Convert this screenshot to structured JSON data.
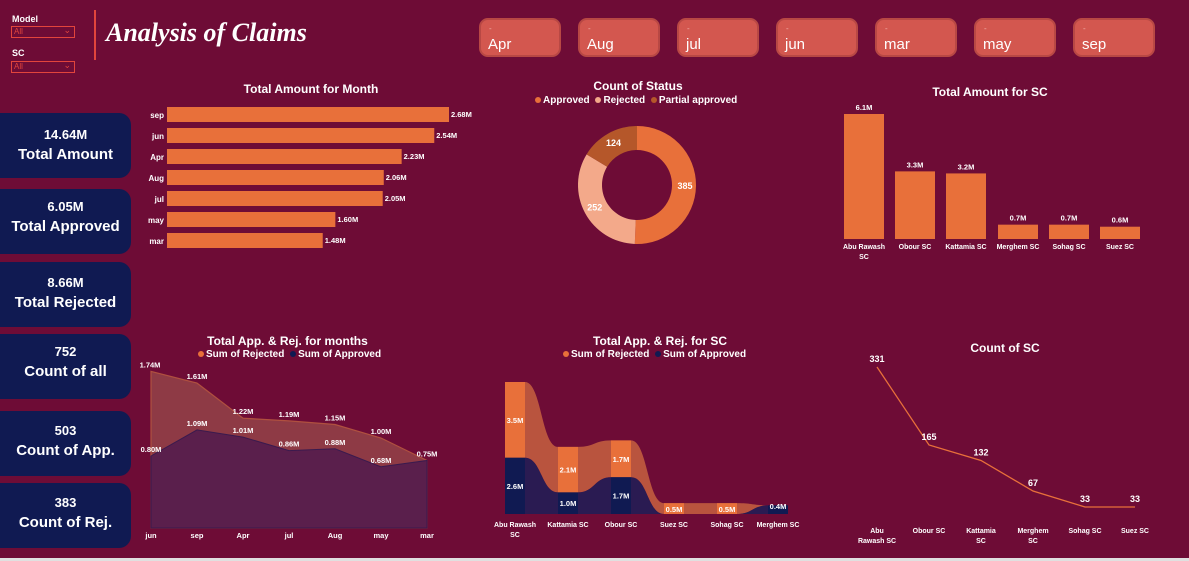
{
  "header": {
    "title": "Analysis of Claims",
    "filters": [
      {
        "label": "Model",
        "value": "All"
      },
      {
        "label": "SC",
        "value": "All"
      }
    ],
    "month_buttons": [
      "Apr",
      "Aug",
      "jul",
      "jun",
      "mar",
      "may",
      "sep"
    ]
  },
  "kpis": [
    {
      "value": "14.64M",
      "label": "Total Amount"
    },
    {
      "value": "6.05M",
      "label": "Total Approved"
    },
    {
      "value": "8.66M",
      "label": "Total Rejected"
    },
    {
      "value": "752",
      "label": "Count of all"
    },
    {
      "value": "503",
      "label": "Count of App."
    },
    {
      "value": "383",
      "label": "Count of Rej."
    }
  ],
  "colors": {
    "background": "#6e0c36",
    "orange": "#e8703a",
    "navy": "#101a52",
    "light_peach": "#f3a98a",
    "brown": "#b5572a"
  },
  "chart_data": [
    {
      "id": "amount_month",
      "type": "bar",
      "orientation": "horizontal",
      "title": "Total Amount for Month",
      "categories": [
        "sep",
        "jun",
        "Apr",
        "Aug",
        "jul",
        "may",
        "mar"
      ],
      "values": [
        2.68,
        2.54,
        2.23,
        2.06,
        2.05,
        1.6,
        1.48
      ],
      "labels": [
        "2.68M",
        "2.54M",
        "2.23M",
        "2.06M",
        "2.05M",
        "1.60M",
        "1.48M"
      ],
      "unit": "M",
      "xlim": [
        0,
        2.68
      ]
    },
    {
      "id": "status",
      "type": "pie",
      "donut": true,
      "title": "Count of Status",
      "legend": [
        "Approved",
        "Rejected",
        "Partial approved"
      ],
      "values": [
        385,
        252,
        124
      ],
      "labels": [
        "385",
        "252",
        "124"
      ],
      "legend_position": "top"
    },
    {
      "id": "amount_sc",
      "type": "bar",
      "title": "Total Amount for SC",
      "categories": [
        "Abu Rawash SC",
        "Obour SC",
        "Kattamia SC",
        "Merghem SC",
        "Sohag SC",
        "Suez SC"
      ],
      "values": [
        6.1,
        3.3,
        3.2,
        0.7,
        0.7,
        0.6
      ],
      "labels": [
        "6.1M",
        "3.3M",
        "3.2M",
        "0.7M",
        "0.7M",
        "0.6M"
      ],
      "ylim": [
        0,
        6.1
      ]
    },
    {
      "id": "app_rej_months",
      "type": "area",
      "title": "Total App. & Rej. for months",
      "legend": [
        "Sum of Rejected",
        "Sum of Approved"
      ],
      "legend_position": "top",
      "categories": [
        "jun",
        "sep",
        "Apr",
        "jul",
        "Aug",
        "may",
        "mar"
      ],
      "series": [
        {
          "name": "Sum of Rejected",
          "values": [
            1.74,
            1.61,
            1.22,
            1.19,
            1.15,
            1.0,
            0.75
          ],
          "labels": [
            "1.74M",
            "1.61M",
            "1.22M",
            "1.19M",
            "1.15M",
            "1.00M",
            "0.75M"
          ]
        },
        {
          "name": "Sum of Approved",
          "values": [
            0.8,
            1.09,
            1.01,
            0.86,
            0.88,
            0.68,
            0.75
          ],
          "labels": [
            "0.80M",
            "1.09M",
            "1.01M",
            "0.86M",
            "0.88M",
            "0.68M",
            ""
          ]
        }
      ],
      "ylim": [
        0,
        1.8
      ]
    },
    {
      "id": "app_rej_sc",
      "type": "bar",
      "stacked": true,
      "title": "Total App. & Rej. for SC",
      "legend": [
        "Sum of Rejected",
        "Sum of Approved"
      ],
      "legend_position": "top",
      "categories": [
        "Abu Rawash SC",
        "Kattamia SC",
        "Obour SC",
        "Suez SC",
        "Sohag SC",
        "Merghem SC"
      ],
      "series": [
        {
          "name": "Sum of Rejected",
          "values": [
            3.5,
            2.1,
            1.7,
            0.5,
            0.5,
            0.0
          ],
          "labels": [
            "3.5M",
            "2.1M",
            "1.7M",
            "0.5M",
            "0.5M",
            ""
          ]
        },
        {
          "name": "Sum of Approved",
          "values": [
            2.6,
            1.0,
            1.7,
            0.0,
            0.0,
            0.4
          ],
          "labels": [
            "2.6M",
            "1.0M",
            "1.7M",
            "",
            "",
            "0.4M"
          ]
        }
      ],
      "ylim": [
        0,
        6.1
      ]
    },
    {
      "id": "count_sc",
      "type": "line",
      "title": "Count of SC",
      "categories": [
        "Abu Rawash SC",
        "Obour SC",
        "Kattamia SC",
        "Merghem SC",
        "Sohag SC",
        "Suez SC"
      ],
      "values": [
        331,
        165,
        132,
        67,
        33,
        33
      ],
      "labels": [
        "331",
        "165",
        "132",
        "67",
        "33",
        "33"
      ],
      "ylim": [
        0,
        331
      ]
    }
  ]
}
